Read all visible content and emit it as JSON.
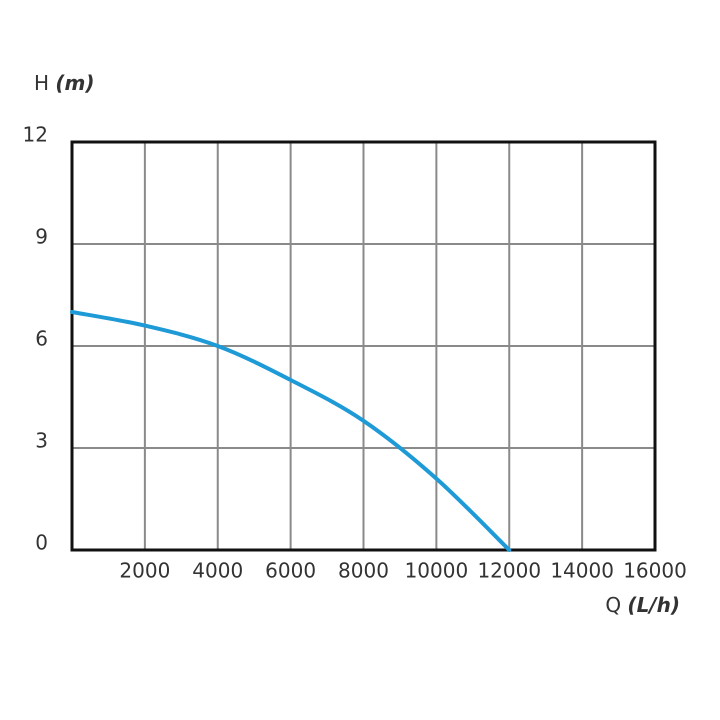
{
  "chart_data": {
    "type": "line",
    "y_label": "H",
    "y_unit": "(m)",
    "x_label": "Q",
    "x_unit": "(L/h)",
    "x": [
      0,
      2000,
      4000,
      6000,
      8000,
      10000,
      12000
    ],
    "series": [
      {
        "color": "#1e9ad6",
        "values": [
          7.0,
          6.6,
          6.0,
          5.0,
          3.8,
          2.1,
          0
        ]
      }
    ],
    "xlim": [
      0,
      16000
    ],
    "xticks": [
      2000,
      4000,
      6000,
      8000,
      10000,
      12000,
      14000,
      16000
    ],
    "ylim": [
      0,
      12
    ],
    "yticks": [
      0,
      3,
      6,
      9,
      12
    ],
    "grid": true
  }
}
